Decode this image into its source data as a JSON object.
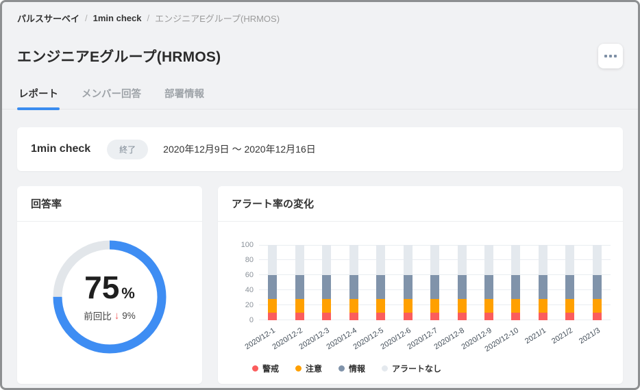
{
  "breadcrumb": {
    "separator": "/",
    "items": [
      {
        "label": "パルスサーベイ",
        "current": false
      },
      {
        "label": "1min check",
        "current": false
      },
      {
        "label": "エンジニアEグループ(HRMOS)",
        "current": true
      }
    ]
  },
  "header": {
    "title": "エンジニアEグループ(HRMOS)",
    "more_icon": "ellipsis-icon"
  },
  "tabs": [
    {
      "label": "レポート",
      "active": true
    },
    {
      "label": "メンバー回答",
      "active": false
    },
    {
      "label": "部署情報",
      "active": false
    }
  ],
  "survey": {
    "name": "1min check",
    "status_badge": "終了",
    "date_range": "2020年12月9日 ～ 2020年12月16日"
  },
  "response_rate": {
    "card_title": "回答率",
    "value": 75,
    "unit": "%",
    "comparison_label": "前回比",
    "delta_arrow": "↓",
    "delta": "9%",
    "ring_color": "#3e8df3",
    "track_color": "#e2e6ea"
  },
  "chart_data": {
    "type": "bar",
    "stacked": true,
    "title": "アラート率の変化",
    "categories": [
      "2020/12-1",
      "2020/12-2",
      "2020/12-3",
      "2020/12-4",
      "2020/12-5",
      "2020/12-6",
      "2020/12-7",
      "2020/12-8",
      "2020/12-9",
      "2020/12-10",
      "2021/1",
      "2021/2",
      "2021/3"
    ],
    "series": [
      {
        "name": "警戒",
        "color": "#fb5d5d",
        "values": [
          10,
          10,
          10,
          10,
          10,
          10,
          10,
          10,
          10,
          10,
          10,
          10,
          10
        ]
      },
      {
        "name": "注意",
        "color": "#ffa000",
        "values": [
          18,
          18,
          18,
          18,
          18,
          18,
          18,
          18,
          18,
          18,
          18,
          18,
          18
        ]
      },
      {
        "name": "情報",
        "color": "#8093aa",
        "values": [
          32,
          32,
          32,
          32,
          32,
          32,
          32,
          32,
          32,
          32,
          32,
          32,
          32
        ]
      },
      {
        "name": "アラートなし",
        "color": "#e4e9ee",
        "values": [
          40,
          40,
          40,
          40,
          40,
          40,
          40,
          40,
          40,
          40,
          40,
          40,
          40
        ]
      }
    ],
    "ylim": [
      0,
      100
    ],
    "yticks": [
      0,
      20,
      40,
      60,
      80,
      100
    ],
    "grid": true,
    "legend_position": "bottom"
  }
}
